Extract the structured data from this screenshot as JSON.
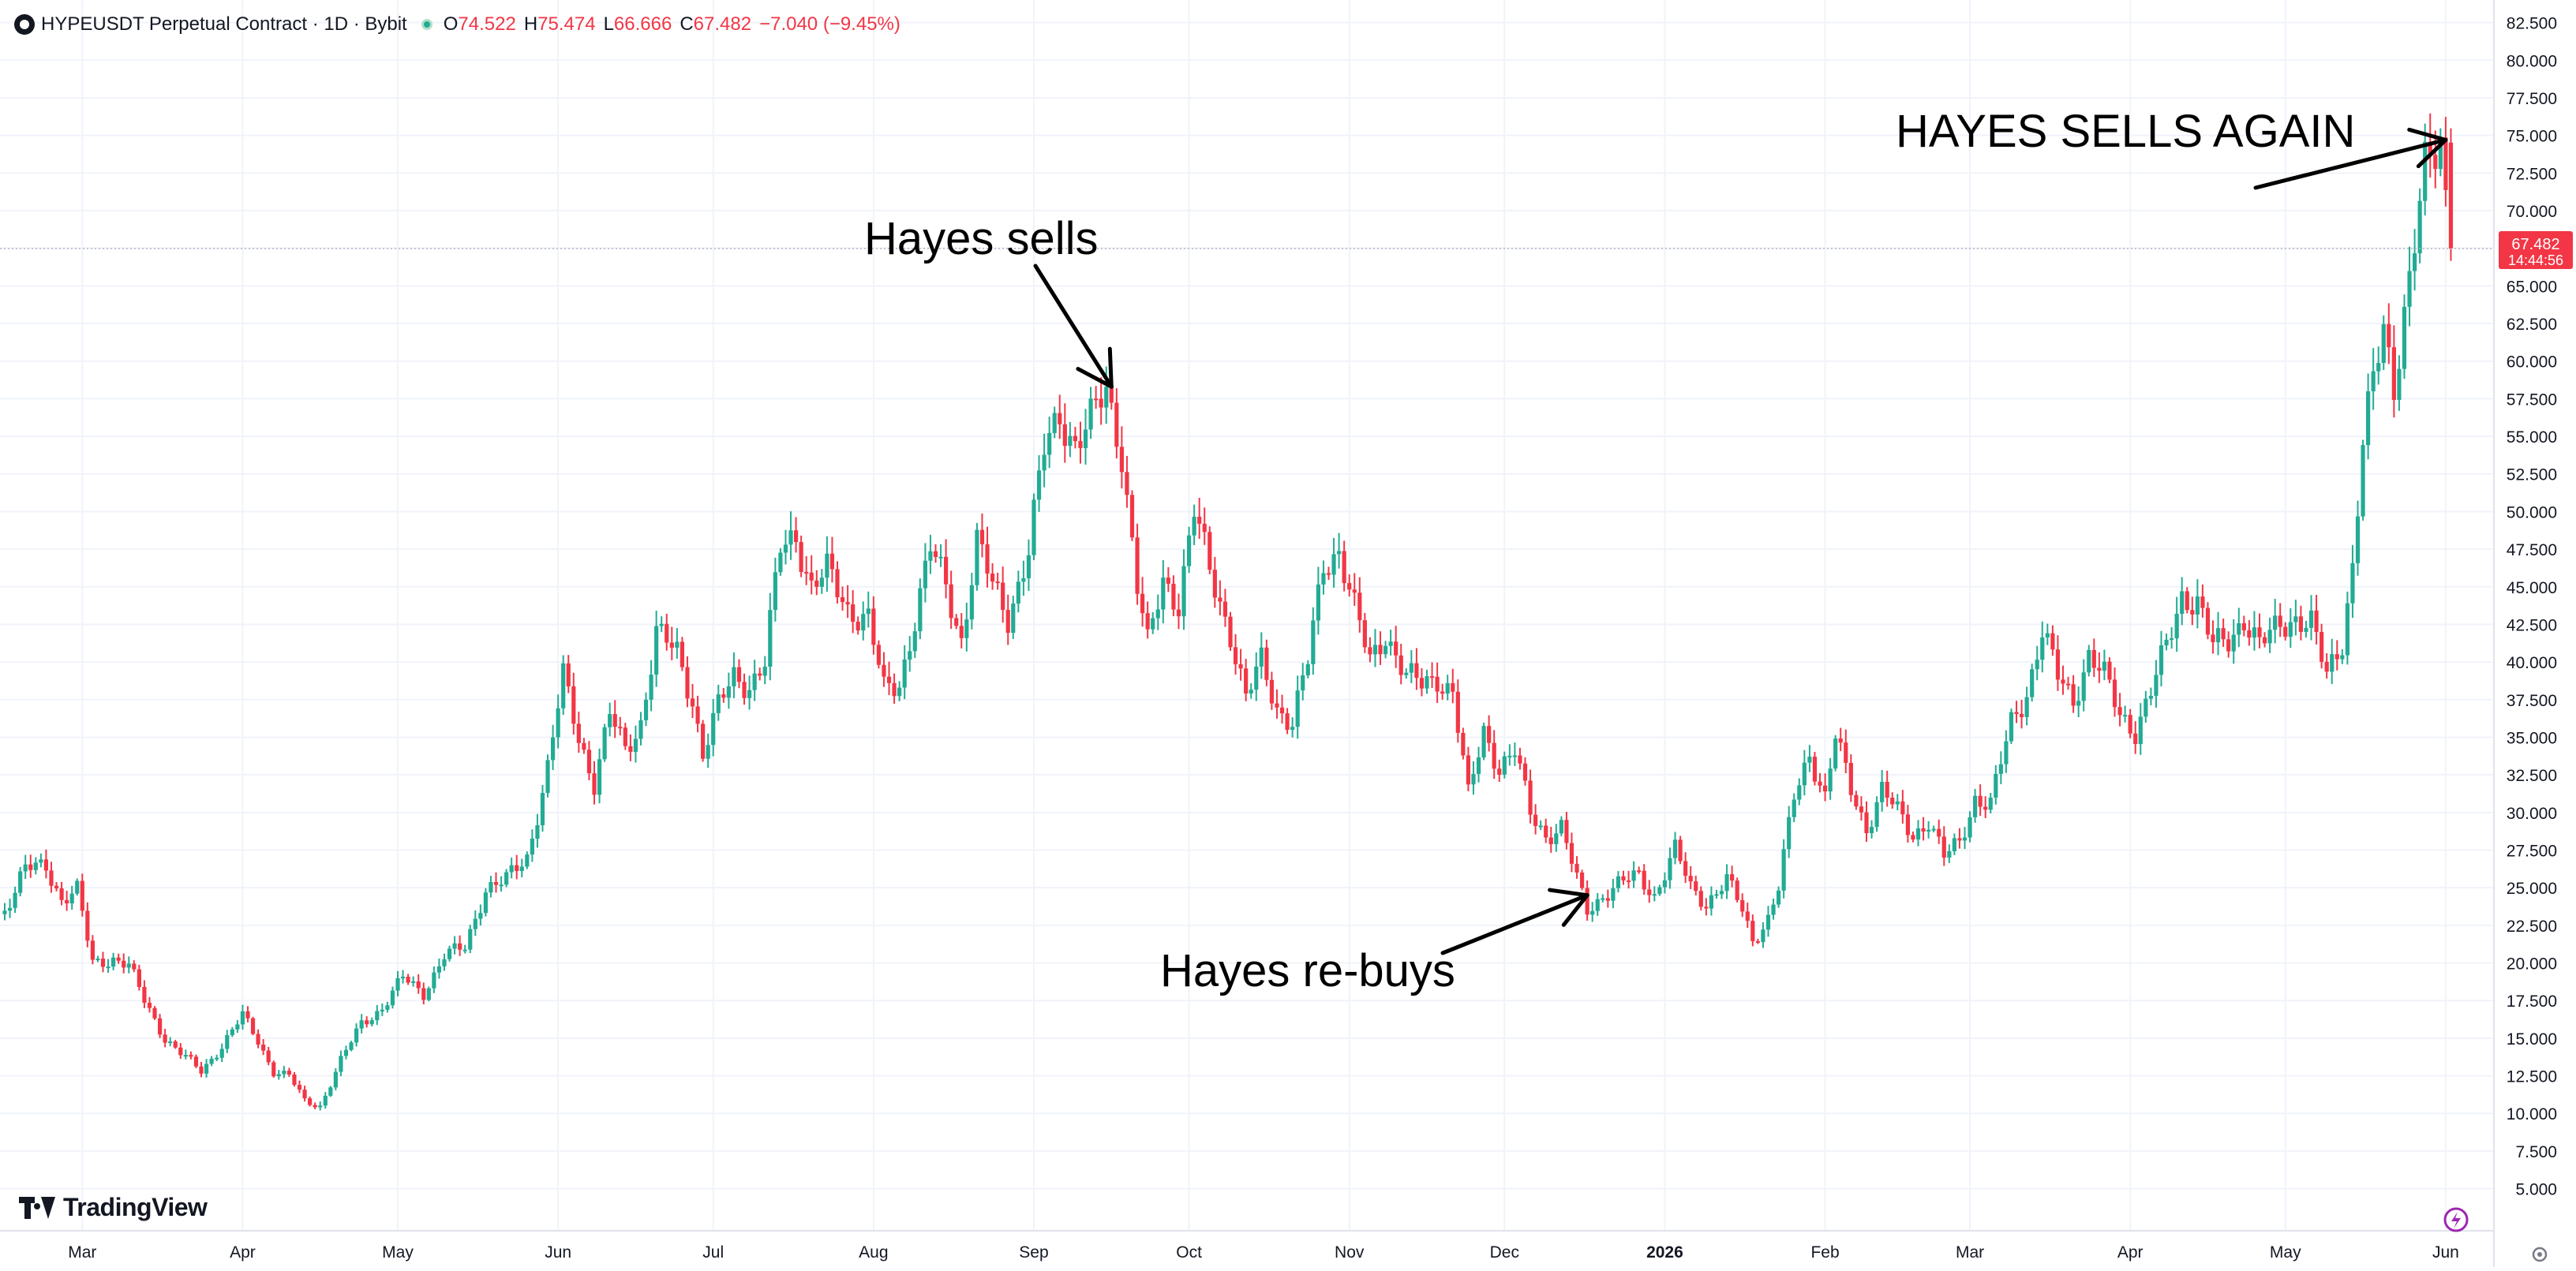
{
  "header": {
    "title": "HYPEUSDT Perpetual Contract · 1D · Bybit",
    "open_label": "O",
    "open_value": "74.522",
    "high_label": "H",
    "high_value": "75.474",
    "low_label": "L",
    "low_value": "66.666",
    "close_label": "C",
    "close_value": "67.482",
    "change": "−7.040 (−9.45%)"
  },
  "price_tag": {
    "price": "67.482",
    "countdown": "14:44:56"
  },
  "branding": {
    "name": "TradingView"
  },
  "colors": {
    "up": "#22ab94",
    "down": "#f23645",
    "text": "#131722",
    "grid": "#f0f3fa",
    "accent": "#9c27b0"
  },
  "chart_data": {
    "type": "candlestick",
    "title": "",
    "x_range": [
      "2025-02-14",
      "2026-06-03"
    ],
    "y_range": [
      2.2,
      84.0
    ],
    "y_ticks": [
      "82.500",
      "80.000",
      "77.500",
      "75.000",
      "72.500",
      "70.000",
      "67.500",
      "65.000",
      "62.500",
      "60.000",
      "57.500",
      "55.000",
      "52.500",
      "50.000",
      "47.500",
      "45.000",
      "42.500",
      "40.000",
      "37.500",
      "35.000",
      "32.500",
      "30.000",
      "27.500",
      "25.000",
      "22.500",
      "20.000",
      "17.500",
      "15.000",
      "12.500",
      "10.000",
      "7.500",
      "5.000"
    ],
    "x_ticks": [
      {
        "label": "Mar",
        "date": "2025-03-01"
      },
      {
        "label": "Apr",
        "date": "2025-04-01"
      },
      {
        "label": "May",
        "date": "2025-05-01"
      },
      {
        "label": "Jun",
        "date": "2025-06-01"
      },
      {
        "label": "Jul",
        "date": "2025-07-01"
      },
      {
        "label": "Aug",
        "date": "2025-08-01"
      },
      {
        "label": "Sep",
        "date": "2025-09-01"
      },
      {
        "label": "Oct",
        "date": "2025-10-01"
      },
      {
        "label": "Nov",
        "date": "2025-11-01"
      },
      {
        "label": "Dec",
        "date": "2025-12-01"
      },
      {
        "label": "2026",
        "date": "2026-01-01"
      },
      {
        "label": "Feb",
        "date": "2026-02-01"
      },
      {
        "label": "Mar",
        "date": "2026-03-01"
      },
      {
        "label": "Apr",
        "date": "2026-04-01"
      },
      {
        "label": "May",
        "date": "2026-05-01"
      },
      {
        "label": "Jun",
        "date": "2026-06-01"
      }
    ],
    "close_series": [
      [
        "2025-02-14",
        23.5
      ],
      [
        "2025-02-18",
        26.2
      ],
      [
        "2025-02-22",
        26.5
      ],
      [
        "2025-02-25",
        24.2
      ],
      [
        "2025-02-28",
        24.8
      ],
      [
        "2025-03-03",
        20.0
      ],
      [
        "2025-03-07",
        20.3
      ],
      [
        "2025-03-10",
        19.8
      ],
      [
        "2025-03-13",
        17.5
      ],
      [
        "2025-03-17",
        15.0
      ],
      [
        "2025-03-20",
        14.0
      ],
      [
        "2025-03-24",
        12.8
      ],
      [
        "2025-03-28",
        14.5
      ],
      [
        "2025-04-01",
        16.5
      ],
      [
        "2025-04-04",
        14.8
      ],
      [
        "2025-04-07",
        12.8
      ],
      [
        "2025-04-10",
        12.5
      ],
      [
        "2025-04-13",
        10.8
      ],
      [
        "2025-04-16",
        10.5
      ],
      [
        "2025-04-20",
        13.5
      ],
      [
        "2025-04-24",
        16.0
      ],
      [
        "2025-04-28",
        17.0
      ],
      [
        "2025-05-02",
        19.0
      ],
      [
        "2025-05-06",
        18.0
      ],
      [
        "2025-05-10",
        20.5
      ],
      [
        "2025-05-14",
        21.0
      ],
      [
        "2025-05-18",
        25.0
      ],
      [
        "2025-05-22",
        25.5
      ],
      [
        "2025-05-26",
        27.0
      ],
      [
        "2025-05-30",
        33.0
      ],
      [
        "2025-06-02",
        39.0
      ],
      [
        "2025-06-05",
        35.0
      ],
      [
        "2025-06-08",
        32.0
      ],
      [
        "2025-06-11",
        36.5
      ],
      [
        "2025-06-14",
        34.0
      ],
      [
        "2025-06-17",
        36.0
      ],
      [
        "2025-06-20",
        42.0
      ],
      [
        "2025-06-24",
        40.5
      ],
      [
        "2025-06-27",
        37.5
      ],
      [
        "2025-06-29",
        34.0
      ],
      [
        "2025-07-02",
        37.0
      ],
      [
        "2025-07-05",
        39.0
      ],
      [
        "2025-07-08",
        38.5
      ],
      [
        "2025-07-11",
        40.0
      ],
      [
        "2025-07-14",
        47.5
      ],
      [
        "2025-07-17",
        48.5
      ],
      [
        "2025-07-20",
        45.0
      ],
      [
        "2025-07-23",
        46.0
      ],
      [
        "2025-07-27",
        43.5
      ],
      [
        "2025-07-31",
        43.0
      ],
      [
        "2025-08-03",
        38.0
      ],
      [
        "2025-08-06",
        38.5
      ],
      [
        "2025-08-09",
        43.0
      ],
      [
        "2025-08-12",
        47.5
      ],
      [
        "2025-08-15",
        45.0
      ],
      [
        "2025-08-18",
        41.5
      ],
      [
        "2025-08-21",
        48.0
      ],
      [
        "2025-08-24",
        45.0
      ],
      [
        "2025-08-27",
        43.0
      ],
      [
        "2025-08-31",
        47.5
      ],
      [
        "2025-09-03",
        54.0
      ],
      [
        "2025-09-06",
        56.5
      ],
      [
        "2025-09-09",
        54.5
      ],
      [
        "2025-09-12",
        56.0
      ],
      [
        "2025-09-15",
        58.0
      ],
      [
        "2025-09-18",
        54.0
      ],
      [
        "2025-09-21",
        45.0
      ],
      [
        "2025-09-23",
        41.0
      ],
      [
        "2025-09-26",
        45.5
      ],
      [
        "2025-09-29",
        44.0
      ],
      [
        "2025-10-02",
        50.0
      ],
      [
        "2025-10-05",
        46.0
      ],
      [
        "2025-10-09",
        42.0
      ],
      [
        "2025-10-12",
        37.5
      ],
      [
        "2025-10-15",
        40.0
      ],
      [
        "2025-10-18",
        37.0
      ],
      [
        "2025-10-21",
        36.0
      ],
      [
        "2025-10-24",
        40.0
      ],
      [
        "2025-10-27",
        46.5
      ],
      [
        "2025-10-30",
        47.5
      ],
      [
        "2025-11-02",
        43.5
      ],
      [
        "2025-11-05",
        40.0
      ],
      [
        "2025-11-08",
        42.0
      ],
      [
        "2025-11-12",
        39.0
      ],
      [
        "2025-11-15",
        38.5
      ],
      [
        "2025-11-18",
        39.0
      ],
      [
        "2025-11-21",
        38.0
      ],
      [
        "2025-11-24",
        31.0
      ],
      [
        "2025-11-27",
        35.5
      ],
      [
        "2025-11-30",
        33.0
      ],
      [
        "2025-12-03",
        34.0
      ],
      [
        "2025-12-06",
        30.0
      ],
      [
        "2025-12-09",
        28.5
      ],
      [
        "2025-12-12",
        29.0
      ],
      [
        "2025-12-15",
        25.5
      ],
      [
        "2025-12-17",
        23.5
      ],
      [
        "2025-12-20",
        24.5
      ],
      [
        "2025-12-23",
        25.2
      ],
      [
        "2025-12-27",
        25.8
      ],
      [
        "2025-12-30",
        24.5
      ],
      [
        "2026-01-03",
        27.5
      ],
      [
        "2026-01-06",
        25.0
      ],
      [
        "2026-01-09",
        24.0
      ],
      [
        "2026-01-13",
        25.5
      ],
      [
        "2026-01-16",
        23.5
      ],
      [
        "2026-01-18",
        21.5
      ],
      [
        "2026-01-21",
        23.0
      ],
      [
        "2026-01-23",
        25.0
      ],
      [
        "2026-01-26",
        31.0
      ],
      [
        "2026-01-29",
        34.0
      ],
      [
        "2026-02-01",
        31.0
      ],
      [
        "2026-02-03",
        35.0
      ],
      [
        "2026-02-06",
        31.5
      ],
      [
        "2026-02-09",
        29.0
      ],
      [
        "2026-02-12",
        31.5
      ],
      [
        "2026-02-15",
        30.0
      ],
      [
        "2026-02-18",
        28.5
      ],
      [
        "2026-02-21",
        29.5
      ],
      [
        "2026-02-24",
        27.0
      ],
      [
        "2026-02-27",
        28.0
      ],
      [
        "2026-03-02",
        31.0
      ],
      [
        "2026-03-05",
        30.5
      ],
      [
        "2026-03-09",
        36.0
      ],
      [
        "2026-03-12",
        38.0
      ],
      [
        "2026-03-15",
        42.0
      ],
      [
        "2026-03-18",
        39.0
      ],
      [
        "2026-03-21",
        37.5
      ],
      [
        "2026-03-24",
        40.5
      ],
      [
        "2026-03-27",
        39.0
      ],
      [
        "2026-03-30",
        36.5
      ],
      [
        "2026-04-02",
        35.5
      ],
      [
        "2026-04-05",
        38.0
      ],
      [
        "2026-04-08",
        41.0
      ],
      [
        "2026-04-11",
        44.5
      ],
      [
        "2026-04-14",
        44.0
      ],
      [
        "2026-04-17",
        41.0
      ],
      [
        "2026-04-20",
        41.5
      ],
      [
        "2026-04-23",
        43.0
      ],
      [
        "2026-04-26",
        41.0
      ],
      [
        "2026-04-30",
        42.5
      ],
      [
        "2026-05-03",
        43.0
      ],
      [
        "2026-05-06",
        42.5
      ],
      [
        "2026-05-09",
        39.0
      ],
      [
        "2026-05-12",
        41.5
      ],
      [
        "2026-05-14",
        46.5
      ],
      [
        "2026-05-16",
        54.5
      ],
      [
        "2026-05-18",
        58.5
      ],
      [
        "2026-05-20",
        62.0
      ],
      [
        "2026-05-22",
        58.5
      ],
      [
        "2026-05-24",
        63.5
      ],
      [
        "2026-05-26",
        68.0
      ],
      [
        "2026-05-28",
        72.5
      ],
      [
        "2026-05-30",
        73.5
      ],
      [
        "2026-05-31",
        74.5
      ],
      [
        "2026-06-02",
        67.5
      ]
    ],
    "last_bar": {
      "date": "2026-06-02",
      "open": 74.522,
      "high": 75.474,
      "low": 66.666,
      "close": 67.482
    },
    "annotations": [
      {
        "text": "Hayes sells",
        "date": "2025-09-16",
        "price": 58.3
      },
      {
        "text": "Hayes re-buys",
        "date": "2025-12-17",
        "price": 24.5
      },
      {
        "text": "HAYES SELLS AGAIN",
        "date": "2026-06-01",
        "price": 74.7
      }
    ]
  }
}
